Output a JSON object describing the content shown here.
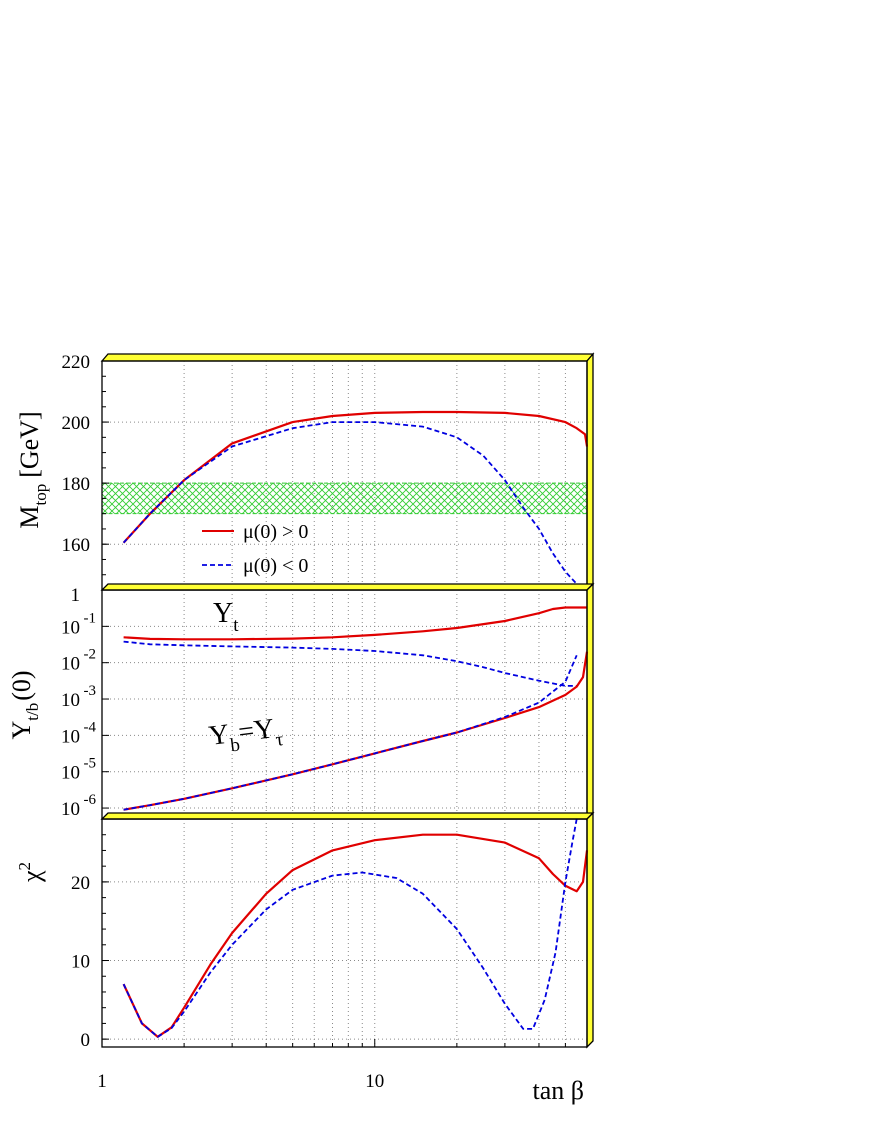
{
  "chart_data": [
    {
      "type": "line",
      "panel": "top",
      "ylabel_main": "M",
      "ylabel_sub": "top",
      "ylabel_unit": "[GeV]",
      "xscale": "log",
      "xlim": [
        1,
        60
      ],
      "ylim": [
        145,
        220
      ],
      "y_ticks": [
        "160",
        "180",
        "200",
        "220"
      ],
      "band": {
        "y_range": [
          170,
          180
        ],
        "color": "#33cc33",
        "pattern": "crosshatch"
      },
      "legend": {
        "placement": "bottom-center",
        "entries": [
          {
            "label": "μ(0) > 0",
            "color": "#e00000",
            "style": "solid"
          },
          {
            "label": "μ(0) < 0",
            "color": "#0000e0",
            "style": "dashed"
          }
        ]
      },
      "series": [
        {
          "label_ref": "μ(0) > 0",
          "color": "#e00000",
          "style": "solid",
          "x": [
            1.2,
            1.5,
            2,
            3,
            5,
            7,
            10,
            15,
            20,
            30,
            40,
            50,
            55,
            59,
            60
          ],
          "y": [
            160.5,
            170,
            181,
            193,
            200,
            202,
            203,
            203.3,
            203.3,
            203,
            202,
            200,
            198,
            196,
            192
          ]
        },
        {
          "label_ref": "μ(0) < 0",
          "color": "#0000e0",
          "style": "dashed",
          "x": [
            1.2,
            1.5,
            2,
            3,
            5,
            7,
            10,
            15,
            20,
            25,
            30,
            35,
            40,
            45,
            50,
            55
          ],
          "y": [
            160.5,
            170,
            181,
            192,
            198,
            200,
            200,
            198.5,
            195,
            189,
            181,
            172,
            165,
            157,
            151,
            147
          ]
        }
      ]
    },
    {
      "type": "line",
      "panel": "middle",
      "ylabel_main": "Y",
      "ylabel_sub": "t/b",
      "ylabel_unit": "(0)",
      "xscale": "log",
      "yscale": "log",
      "xlim": [
        1,
        60
      ],
      "ylim": [
        5e-07,
        1
      ],
      "y_ticks": [
        {
          "base": "1",
          "exp": ""
        },
        {
          "base": "10",
          "exp": "-1"
        },
        {
          "base": "10",
          "exp": "-2"
        },
        {
          "base": "10",
          "exp": "-3"
        },
        {
          "base": "10",
          "exp": "-4"
        },
        {
          "base": "10",
          "exp": "-5"
        },
        {
          "base": "10",
          "exp": "-6"
        }
      ],
      "annotations": [
        {
          "main": "Y",
          "sub": "t"
        },
        {
          "main": "Y",
          "sub1": "b",
          "eq": "=Y",
          "sub2": "τ"
        }
      ],
      "series": [
        {
          "label_ref": "Y_t μ>0",
          "color": "#e00000",
          "style": "solid",
          "x": [
            1.2,
            1.5,
            2,
            3,
            5,
            7,
            10,
            15,
            20,
            30,
            40,
            45,
            50,
            60
          ],
          "y": [
            0.05,
            0.045,
            0.044,
            0.044,
            0.046,
            0.05,
            0.058,
            0.073,
            0.09,
            0.14,
            0.23,
            0.3,
            0.33,
            0.33
          ]
        },
        {
          "label_ref": "Y_t μ<0",
          "color": "#0000e0",
          "style": "dashed",
          "x": [
            1.2,
            1.5,
            2,
            3,
            5,
            7,
            10,
            15,
            20,
            25,
            30,
            40,
            50,
            55
          ],
          "y": [
            0.038,
            0.032,
            0.03,
            0.028,
            0.026,
            0.024,
            0.021,
            0.016,
            0.011,
            0.0075,
            0.0052,
            0.0032,
            0.0023,
            0.0023
          ]
        },
        {
          "label_ref": "Y_b=Y_tau μ>0",
          "color": "#e00000",
          "style": "solid",
          "x": [
            1.2,
            1.5,
            2,
            3,
            5,
            7,
            10,
            15,
            20,
            30,
            40,
            50,
            55,
            58,
            60
          ],
          "y": [
            9e-07,
            1.2e-06,
            1.8e-06,
            3.5e-06,
            8.5e-06,
            1.6e-05,
            3.2e-05,
            7e-05,
            0.00012,
            0.0003,
            0.0006,
            0.0013,
            0.0022,
            0.004,
            0.02
          ]
        },
        {
          "label_ref": "Y_b=Y_tau μ<0",
          "color": "#0000e0",
          "style": "dashed",
          "x": [
            1.2,
            1.5,
            2,
            3,
            5,
            7,
            10,
            15,
            20,
            30,
            40,
            50,
            55
          ],
          "y": [
            9e-07,
            1.2e-06,
            1.8e-06,
            3.5e-06,
            8.5e-06,
            1.6e-05,
            3.2e-05,
            7e-05,
            0.00012,
            0.00032,
            0.0008,
            0.003,
            0.016
          ]
        }
      ]
    },
    {
      "type": "line",
      "panel": "bottom",
      "ylabel_main": "χ",
      "ylabel_sup": "2",
      "xlabel": "tan β",
      "xscale": "log",
      "xlim": [
        1,
        60
      ],
      "ylim": [
        -1,
        28
      ],
      "x_ticks": [
        "1",
        "10"
      ],
      "y_ticks": [
        "0",
        "10",
        "20"
      ],
      "series": [
        {
          "label_ref": "χ² μ>0",
          "color": "#e00000",
          "style": "solid",
          "x": [
            1.2,
            1.4,
            1.6,
            1.8,
            2,
            2.5,
            3,
            4,
            5,
            7,
            10,
            15,
            20,
            30,
            40,
            45,
            50,
            55,
            58,
            60
          ],
          "y": [
            7,
            2,
            0.3,
            1.5,
            4,
            9.5,
            13.5,
            18.5,
            21.5,
            24,
            25.3,
            26,
            26,
            25,
            23,
            21,
            19.5,
            18.8,
            20,
            24
          ]
        },
        {
          "label_ref": "χ² μ<0",
          "color": "#0000e0",
          "style": "dashed",
          "x": [
            1.2,
            1.4,
            1.6,
            1.8,
            2,
            2.5,
            3,
            4,
            5,
            7,
            9,
            12,
            15,
            20,
            25,
            30,
            35,
            38,
            42,
            46,
            50,
            53,
            55
          ],
          "y": [
            7,
            2,
            0.3,
            1.4,
            3.5,
            8.5,
            12,
            16.5,
            19,
            20.8,
            21.2,
            20.5,
            18.5,
            14,
            9,
            4.5,
            1.3,
            1.3,
            5,
            11,
            20,
            25,
            28
          ]
        }
      ]
    }
  ]
}
